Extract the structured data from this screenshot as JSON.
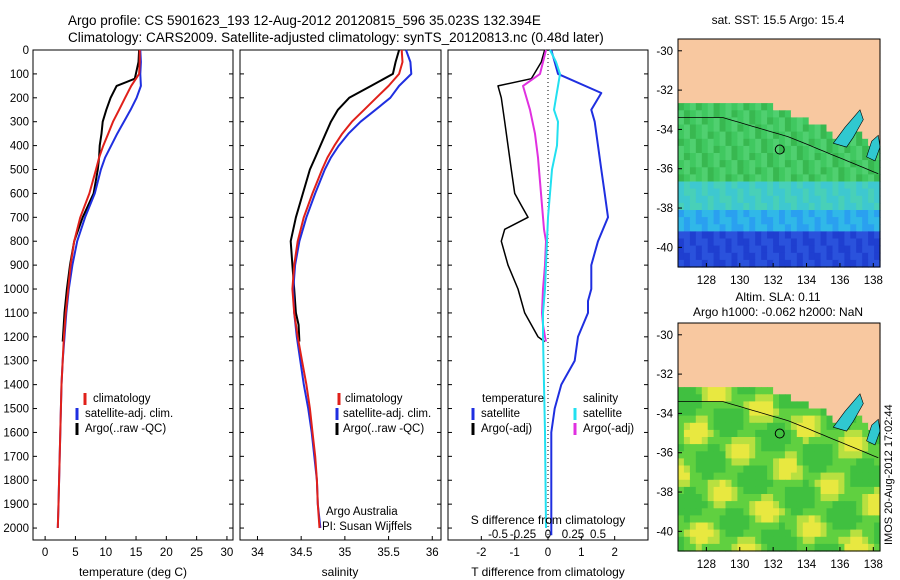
{
  "header": {
    "line1": "Argo profile: CS 5901623_193 12-Aug-2012 20120815_596 35.023S 132.394E",
    "line2": "Climatology: CARS2009. Satellite-adjusted climatology: synTS_20120813.nc (0.48d later)"
  },
  "colors": {
    "climatology": "#e0201a",
    "satellite": "#1f2fe0",
    "argo": "#000000",
    "sal_satellite": "#22e0f0",
    "sal_argo": "#e030e0",
    "land": "#f8c8a0"
  },
  "depth_axis": {
    "ticks": [
      "0",
      "100",
      "200",
      "300",
      "400",
      "500",
      "600",
      "700",
      "800",
      "900",
      "1000",
      "1100",
      "1200",
      "1300",
      "1400",
      "1500",
      "1600",
      "1700",
      "1800",
      "1900",
      "2000"
    ],
    "range": [
      0,
      2050
    ],
    "reversed": true
  },
  "panel_temperature": {
    "xlabel": "temperature (deg C)",
    "xticks": [
      "0",
      "5",
      "10",
      "15",
      "20",
      "25",
      "30"
    ],
    "legend": [
      "climatology",
      "satellite-adj. clim.",
      "Argo(..raw -QC)"
    ]
  },
  "panel_salinity": {
    "xlabel": "salinity",
    "xticks": [
      "34",
      "34.5",
      "35",
      "35.5",
      "36"
    ],
    "legend": [
      "climatology",
      "satellite-adj. clim.",
      "Argo(..raw -QC)"
    ],
    "credit1": "Argo Australia",
    "credit2": "PI: Susan Wijffels"
  },
  "panel_difference": {
    "top_xticks": [
      "-0.5",
      "-0.25",
      "0",
      "0.25",
      "0.5"
    ],
    "top_xlabel": "S difference from climatology",
    "xticks": [
      "-2",
      "-1",
      "0",
      "1",
      "2"
    ],
    "xlabel": "T difference from climatology",
    "legend_temp_title": "temperature",
    "legend_sal_title": "salinity",
    "legend_temp": [
      "satellite",
      "Argo(-adj)"
    ],
    "legend_sal": [
      "satellite",
      "Argo(-adj)"
    ]
  },
  "map_sst": {
    "title": "sat. SST: 15.5 Argo: 15.4",
    "yticks": [
      "-30",
      "-32",
      "-34",
      "-36",
      "-38",
      "-40"
    ],
    "xticks": [
      "128",
      "130",
      "132",
      "134",
      "136",
      "138"
    ]
  },
  "map_sla": {
    "title1": "Altim. SLA: 0.11",
    "title2": "Argo h1000: -0.062 h2000: NaN",
    "yticks": [
      "-30",
      "-32",
      "-34",
      "-36",
      "-38",
      "-40"
    ],
    "xticks": [
      "128",
      "130",
      "132",
      "134",
      "136",
      "138"
    ]
  },
  "side_label": "IMOS 20-Aug-2012 17:02:44",
  "chart_data": [
    {
      "type": "line",
      "name": "temperature profile",
      "xlabel": "temperature (deg C)",
      "ylabel": "",
      "xlim": [
        -2,
        31
      ],
      "ylim": [
        2050,
        0
      ],
      "series": [
        {
          "name": "climatology",
          "x": [
            15.6,
            15.6,
            15.5,
            14.2,
            13.2,
            12.2,
            11.2,
            10.4,
            9.6,
            8.9,
            8.4,
            7.3,
            5.8,
            4.8,
            4.2,
            3.8,
            3.4,
            3.1,
            2.9,
            2.7,
            2.6,
            2.5,
            2.4,
            2.3,
            2.2,
            2.1
          ],
          "y": [
            0,
            50,
            100,
            150,
            200,
            250,
            300,
            350,
            400,
            450,
            500,
            600,
            700,
            800,
            900,
            1000,
            1100,
            1200,
            1300,
            1400,
            1500,
            1600,
            1700,
            1800,
            1900,
            2000
          ]
        },
        {
          "name": "satellite-adj. clim.",
          "x": [
            15.7,
            15.8,
            15.7,
            15.8,
            15.1,
            14.1,
            13.0,
            11.9,
            10.9,
            9.9,
            9.2,
            8.2,
            6.6,
            5.3,
            4.5,
            3.9,
            3.5,
            3.2,
            2.9,
            2.7,
            2.6,
            2.5,
            2.4,
            2.3,
            2.2,
            2.1
          ],
          "y": [
            0,
            50,
            100,
            150,
            200,
            250,
            300,
            350,
            400,
            450,
            500,
            600,
            700,
            800,
            900,
            1000,
            1100,
            1200,
            1300,
            1400,
            1500,
            1600,
            1700,
            1800,
            1900,
            2000
          ]
        },
        {
          "name": "Argo(..raw -QC)",
          "x": [
            15.5,
            15.4,
            14.8,
            11.8,
            10.8,
            10.1,
            9.5,
            9.3,
            9.0,
            8.9,
            8.7,
            8.0,
            6.2,
            4.8,
            4.1,
            3.6,
            3.2,
            2.9
          ],
          "y": [
            0,
            50,
            120,
            150,
            200,
            250,
            300,
            350,
            400,
            450,
            500,
            600,
            700,
            800,
            900,
            1000,
            1100,
            1220
          ]
        }
      ]
    },
    {
      "type": "line",
      "name": "salinity profile",
      "xlabel": "salinity",
      "ylabel": "",
      "xlim": [
        33.8,
        36.1
      ],
      "ylim": [
        2050,
        0
      ],
      "series": [
        {
          "name": "climatology",
          "x": [
            35.65,
            35.66,
            35.62,
            35.5,
            35.36,
            35.22,
            35.08,
            34.97,
            34.88,
            34.8,
            34.74,
            34.63,
            34.53,
            34.46,
            34.42,
            34.4,
            34.42,
            34.46,
            34.51,
            34.56,
            34.6,
            34.63,
            34.66,
            34.68,
            34.69,
            34.71
          ],
          "y": [
            0,
            50,
            100,
            150,
            200,
            250,
            300,
            350,
            400,
            450,
            500,
            600,
            700,
            800,
            900,
            1000,
            1100,
            1200,
            1300,
            1400,
            1500,
            1600,
            1700,
            1800,
            1900,
            2000
          ]
        },
        {
          "name": "satellite-adj. clim.",
          "x": [
            35.7,
            35.75,
            35.76,
            35.62,
            35.52,
            35.35,
            35.18,
            35.04,
            34.93,
            34.84,
            34.77,
            34.66,
            34.56,
            34.48,
            34.43,
            34.41,
            34.42,
            34.45,
            34.49,
            34.53,
            34.58,
            34.62,
            34.65,
            34.68,
            34.69,
            34.72
          ],
          "y": [
            0,
            50,
            100,
            150,
            200,
            250,
            300,
            350,
            400,
            450,
            500,
            600,
            700,
            800,
            900,
            1000,
            1100,
            1200,
            1300,
            1400,
            1500,
            1600,
            1700,
            1800,
            1900,
            2000
          ]
        },
        {
          "name": "Argo(..raw -QC)",
          "x": [
            35.62,
            35.58,
            35.55,
            35.3,
            35.05,
            34.92,
            34.84,
            34.78,
            34.72,
            34.66,
            34.6,
            34.52,
            34.44,
            34.38,
            34.4,
            34.42,
            34.44,
            34.47,
            34.48
          ],
          "y": [
            0,
            50,
            100,
            150,
            200,
            250,
            300,
            350,
            400,
            450,
            500,
            600,
            700,
            800,
            900,
            1000,
            1100,
            1150,
            1220
          ]
        }
      ]
    },
    {
      "type": "line",
      "name": "difference from climatology",
      "xlabel": "T difference from climatology",
      "x2label": "S difference from climatology",
      "xlim": [
        -3,
        3
      ],
      "ylim": [
        2050,
        0
      ],
      "series": [
        {
          "name": "temperature satellite",
          "x": [
            0.1,
            0.2,
            0.3,
            1.6,
            1.3,
            1.4,
            1.5,
            1.6,
            1.7,
            1.8,
            1.5,
            1.3,
            1.3,
            1.2,
            1.2,
            0.9,
            0.8,
            0.4,
            0.2,
            0.1,
            0.1,
            0.1,
            0.1,
            0.1,
            0.1,
            0.1
          ],
          "y": [
            0,
            50,
            100,
            180,
            250,
            300,
            400,
            500,
            600,
            700,
            800,
            900,
            1000,
            1050,
            1100,
            1200,
            1300,
            1400,
            1500,
            1600,
            1700,
            1800,
            1900,
            2000,
            2020,
            2030
          ]
        },
        {
          "name": "temperature Argo(-adj)",
          "x": [
            -0.1,
            -0.2,
            -0.5,
            -1.5,
            -1.4,
            -1.3,
            -1.2,
            -1.1,
            -1.0,
            -0.8,
            -0.6,
            -1.3,
            -1.4,
            -1.2,
            -0.9,
            -0.7,
            -0.3,
            -0.1
          ],
          "y": [
            0,
            50,
            120,
            150,
            200,
            300,
            400,
            500,
            600,
            650,
            700,
            750,
            800,
            900,
            1000,
            1100,
            1200,
            1220
          ]
        },
        {
          "name": "salinity satellite",
          "x": [
            0.02,
            0.08,
            0.12,
            0.1,
            0.08,
            0.06,
            0.1,
            0.09,
            0.04,
            0.02,
            0.0,
            -0.01,
            -0.02,
            -0.03,
            -0.05,
            -0.05,
            -0.04,
            -0.03,
            -0.02
          ],
          "y": [
            0,
            50,
            100,
            150,
            200,
            250,
            300,
            400,
            500,
            600,
            700,
            800,
            900,
            1000,
            1100,
            1200,
            1400,
            1600,
            2000
          ]
        },
        {
          "name": "salinity Argo(-adj)",
          "x": [
            -0.02,
            -0.05,
            -0.08,
            -0.25,
            -0.18,
            -0.13,
            -0.1,
            -0.08,
            -0.06,
            -0.04,
            -0.02,
            -0.03,
            -0.05,
            -0.06,
            -0.05,
            -0.03,
            -0.02
          ],
          "y": [
            0,
            50,
            100,
            150,
            250,
            350,
            450,
            550,
            650,
            750,
            800,
            900,
            1000,
            1100,
            1150,
            1200,
            1220
          ]
        }
      ]
    }
  ]
}
